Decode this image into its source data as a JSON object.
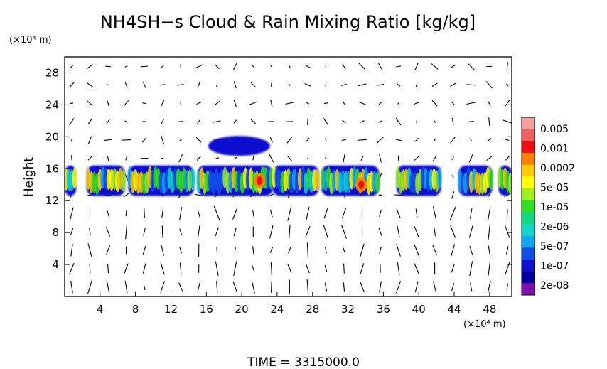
{
  "chart_data": {
    "type": "heatmap",
    "title": "NH4SH−s Cloud & Rain Mixing Ratio [kg/kg]",
    "ylabel": "Height",
    "x_unit": "(×10⁴ m)",
    "y_unit": "(×10⁴ m)",
    "xlim": [
      0,
      50.5
    ],
    "ylim": [
      0,
      30
    ],
    "x_ticks": [
      "4",
      "8",
      "12",
      "16",
      "20",
      "24",
      "28",
      "32",
      "36",
      "40",
      "44",
      "48"
    ],
    "y_ticks": [
      "4",
      "8",
      "12",
      "16",
      "20",
      "24",
      "28"
    ],
    "x_tick_values": [
      4,
      8,
      12,
      16,
      20,
      24,
      28,
      32,
      36,
      40,
      44,
      48
    ],
    "y_tick_values": [
      4,
      8,
      12,
      16,
      20,
      24,
      28
    ],
    "colorbar": {
      "labels": [
        "0.005",
        "0.001",
        "0.0002",
        "5e-05",
        "1e-05",
        "2e-06",
        "5e-07",
        "1e-07",
        "2e-08"
      ],
      "colors": [
        "#f7a0a0",
        "#ef6060",
        "#ee1010",
        "#ff7f00",
        "#ffcc00",
        "#ffff00",
        "#a0f020",
        "#30e020",
        "#10d880",
        "#10d8c8",
        "#10a8f0",
        "#1050e8",
        "#1010d0",
        "#0000a0",
        "#8010b0"
      ]
    },
    "cloud_layer": {
      "base_height": 12.6,
      "top_height": 16.4,
      "x_extent": [
        0,
        50.5
      ],
      "segments": [
        [
          0,
          1.3
        ],
        [
          2.5,
          6.8
        ],
        [
          7.2,
          14.6
        ],
        [
          15,
          23.5
        ],
        [
          23.5,
          28.7
        ],
        [
          29,
          35.5
        ],
        [
          37.5,
          42.5
        ],
        [
          44.5,
          48.3
        ],
        [
          49,
          50.5
        ]
      ],
      "upper_cloud": {
        "x": [
          16.2,
          23.2
        ],
        "height": [
          17.6,
          20.1
        ]
      },
      "max_regions": [
        {
          "x": 22,
          "height": 14.5
        },
        {
          "x": 33.5,
          "height": 14
        }
      ]
    },
    "wind_field": "velocity vectors overlaid on the domain",
    "grid": false
  },
  "footer": {
    "time_label": "TIME  =  3315000.0"
  }
}
